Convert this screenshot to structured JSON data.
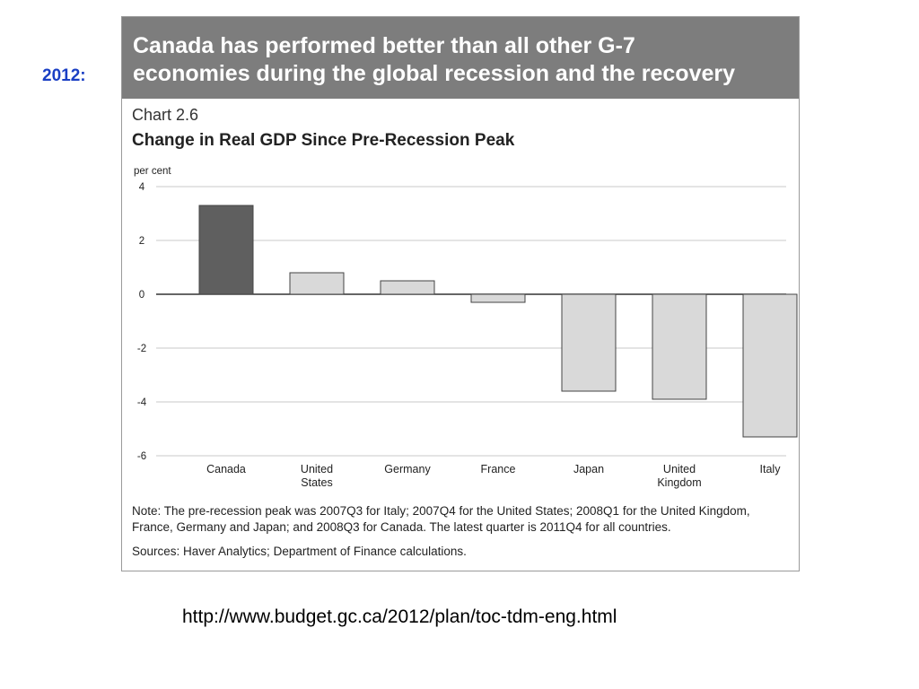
{
  "side_label": "2012:",
  "banner": {
    "line1": "Canada has performed better than all other G-7",
    "line2": "economies during the global recession and the recovery"
  },
  "chart_number": "Chart 2.6",
  "chart_title": "Change in Real GDP Since Pre-Recession Peak",
  "note": "Note: The pre-recession peak was 2007Q3 for Italy; 2007Q4 for the United States; 2008Q1 for the United Kingdom, France, Germany and Japan; and 2008Q3 for Canada. The latest quarter is 2011Q4 for all countries.",
  "sources": "Sources: Haver Analytics; Department of Finance calculations.",
  "url": "http://www.budget.gc.ca/2012/plan/toc-tdm-eng.html",
  "colors": {
    "highlight_bar": "#5f5f5f",
    "other_bars": "#d9d9d9",
    "bar_outline": "#444444",
    "banner": "#7d7d7d",
    "side_label": "#1a3fc4"
  },
  "chart_data": {
    "type": "bar",
    "title": "Change in Real GDP Since Pre-Recession Peak",
    "ylabel": "per cent",
    "ylim": [
      -6,
      4
    ],
    "yticks": [
      4,
      2,
      0,
      -2,
      -4,
      -6
    ],
    "grid": true,
    "categories": [
      [
        "Canada"
      ],
      [
        "United",
        "States"
      ],
      [
        "Germany"
      ],
      [
        "France"
      ],
      [
        "Japan"
      ],
      [
        "United",
        "Kingdom"
      ],
      [
        "Italy"
      ]
    ],
    "values": [
      3.3,
      0.8,
      0.5,
      -0.3,
      -3.6,
      -3.9,
      -5.3
    ],
    "highlight_index": 0
  }
}
